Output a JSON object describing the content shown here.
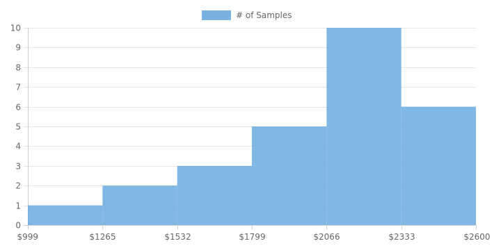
{
  "chart_data": {
    "type": "bar",
    "title": "",
    "xlabel": "",
    "ylabel": "",
    "x_ticks": [
      "$999",
      "$1265",
      "$1532",
      "$1799",
      "$2066",
      "$2333",
      "$2600"
    ],
    "y_ticks": [
      "0",
      "1",
      "2",
      "3",
      "4",
      "5",
      "6",
      "7",
      "8",
      "9",
      "10"
    ],
    "ylim": [
      0,
      10
    ],
    "grid": true,
    "legend": "top-center",
    "series": [
      {
        "name": "# of Samples",
        "color": "#6aaadf",
        "bins": [
          {
            "from": "$999",
            "to": "$1265",
            "value": 1
          },
          {
            "from": "$1265",
            "to": "$1532",
            "value": 2
          },
          {
            "from": "$1532",
            "to": "$1799",
            "value": 3
          },
          {
            "from": "$1799",
            "to": "$2066",
            "value": 5
          },
          {
            "from": "$2066",
            "to": "$2333",
            "value": 10
          },
          {
            "from": "$2333",
            "to": "$2600",
            "value": 6
          }
        ]
      }
    ]
  }
}
